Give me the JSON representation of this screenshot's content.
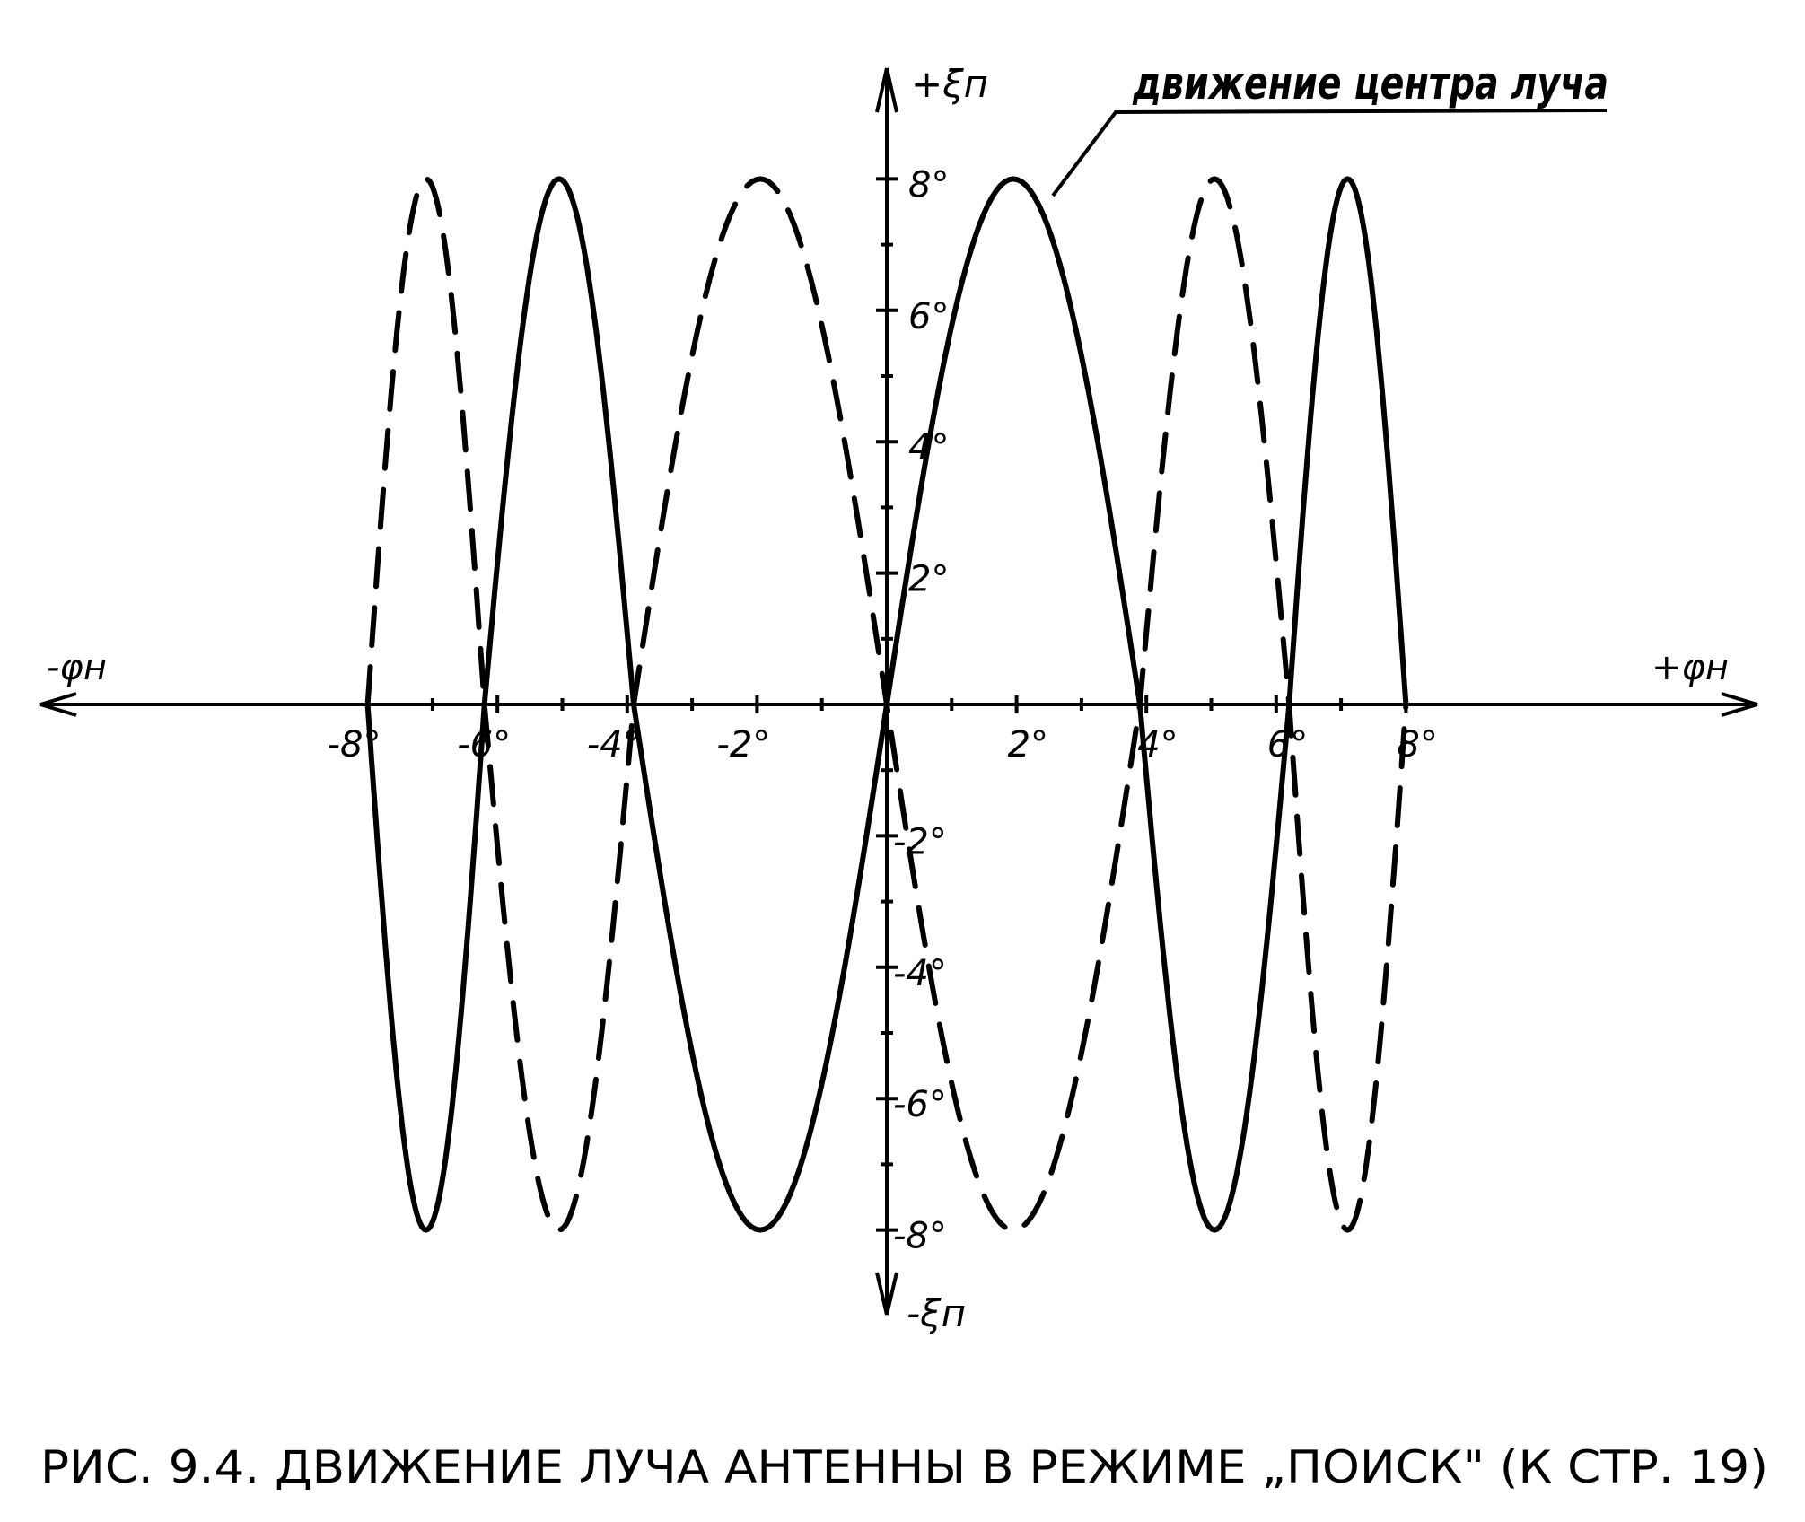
{
  "chart_data": {
    "type": "line",
    "title": "",
    "caption": "РИС. 9.4. ДВИЖЕНИЕ ЛУЧА АНТЕННЫ В РЕЖИМЕ „ПОИСК\" (К СТР. 19)",
    "annotation": "движение центра луча",
    "xlabel_pos": "+φн",
    "xlabel_neg": "-φн",
    "ylabel_pos": "+ξп",
    "ylabel_neg": "-ξп",
    "xlim": [
      -8,
      8
    ],
    "ylim": [
      -8,
      8
    ],
    "grid": false,
    "x_tick_labels": [
      {
        "v": -8,
        "t": "-8°"
      },
      {
        "v": -6,
        "t": "-6°"
      },
      {
        "v": -4,
        "t": "-4°"
      },
      {
        "v": -2,
        "t": "-2°"
      },
      {
        "v": 2,
        "t": "2°"
      },
      {
        "v": 4,
        "t": "4°"
      },
      {
        "v": 6,
        "t": "6°"
      },
      {
        "v": 8,
        "t": "8°"
      }
    ],
    "y_tick_labels": [
      {
        "v": 8,
        "t": "8°"
      },
      {
        "v": 6,
        "t": "6°"
      },
      {
        "v": 4,
        "t": "4°"
      },
      {
        "v": 2,
        "t": "2°"
      },
      {
        "v": -2,
        "t": "-2°"
      },
      {
        "v": -4,
        "t": "-4°"
      },
      {
        "v": -6,
        "t": "-6°"
      },
      {
        "v": -8,
        "t": "-8°"
      }
    ],
    "series": [
      {
        "style": "solid",
        "zero_crossings": [
          -8,
          -6.2,
          -3.9,
          0,
          3.9,
          6.2,
          8
        ],
        "extrema": [
          [
            -7.1,
            -8
          ],
          [
            -5.1,
            8
          ],
          [
            -2.0,
            -8
          ],
          [
            2.1,
            8
          ],
          [
            5.3,
            -8
          ],
          [
            7.1,
            8
          ]
        ]
      },
      {
        "style": "dashed",
        "zero_crossings": [
          -8,
          -6.2,
          -3.9,
          0,
          3.9,
          6.2,
          8
        ],
        "extrema": [
          [
            -7.1,
            8
          ],
          [
            -5.1,
            -8
          ],
          [
            -2.0,
            8
          ],
          [
            2.1,
            -8
          ],
          [
            5.3,
            8
          ],
          [
            7.1,
            -8
          ]
        ]
      }
    ],
    "colors": {
      "ink": "#000000",
      "paper": "#ffffff"
    }
  }
}
